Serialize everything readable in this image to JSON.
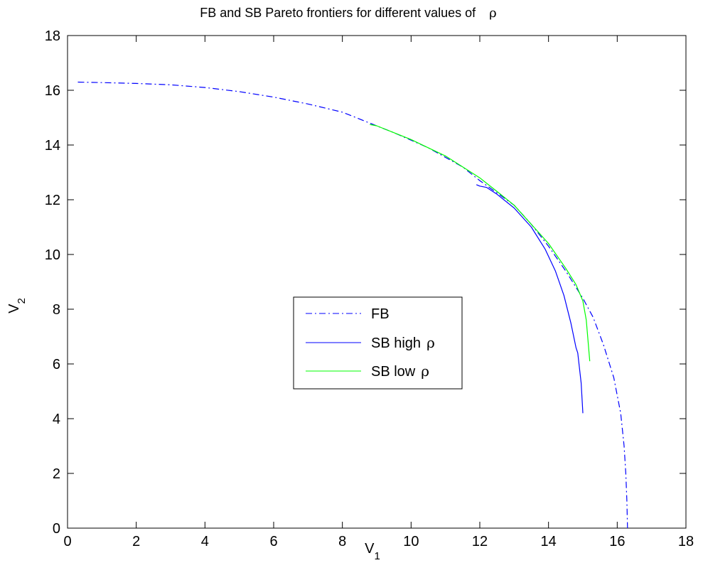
{
  "chart_data": {
    "type": "line",
    "title": "FB and SB Pareto frontiers for different values of",
    "title_symbol": "ρ",
    "xlabel": "V",
    "xlabel_sub": "1",
    "ylabel": "V",
    "ylabel_sub": "2",
    "xlim": [
      0,
      18
    ],
    "ylim": [
      0,
      18
    ],
    "xticks": [
      "0",
      "2",
      "4",
      "6",
      "8",
      "10",
      "12",
      "14",
      "16",
      "18"
    ],
    "yticks": [
      "0",
      "2",
      "4",
      "6",
      "8",
      "10",
      "12",
      "14",
      "16",
      "18"
    ],
    "grid": false,
    "legend_position": "center",
    "series": [
      {
        "name": "FB",
        "color": "#0000ff",
        "style": "dash-dot",
        "x": [
          0.3,
          1.0,
          2.0,
          3.0,
          4.0,
          5.0,
          6.0,
          7.0,
          8.0,
          8.8,
          9.5,
          10.5,
          11.5,
          12.0,
          12.5,
          13.0,
          13.5,
          14.0,
          14.5,
          15.0,
          15.3,
          15.6,
          15.9,
          16.1,
          16.2,
          16.25,
          16.28,
          16.3
        ],
        "y": [
          16.3,
          16.28,
          16.25,
          16.2,
          16.1,
          15.95,
          15.75,
          15.5,
          15.2,
          14.8,
          14.45,
          13.9,
          13.2,
          12.7,
          12.25,
          11.8,
          11.1,
          10.3,
          9.4,
          8.4,
          7.7,
          6.7,
          5.5,
          4.2,
          3.0,
          2.0,
          1.0,
          0.0
        ]
      },
      {
        "name": "SB high ρ",
        "label": "SB high",
        "color": "#0000ff",
        "style": "solid",
        "x": [
          11.9,
          12.0,
          12.2,
          12.5,
          13.0,
          13.5,
          13.9,
          14.2,
          14.45,
          14.65,
          14.8,
          14.85,
          14.95,
          15.0
        ],
        "y": [
          12.55,
          12.5,
          12.45,
          12.2,
          11.7,
          11.0,
          10.2,
          9.4,
          8.5,
          7.5,
          6.6,
          6.4,
          5.3,
          4.2
        ]
      },
      {
        "name": "SB low ρ",
        "label": "SB low",
        "color": "#00ff00",
        "style": "solid",
        "x": [
          8.8,
          9.0,
          9.5,
          10.0,
          10.5,
          11.0,
          11.5,
          12.0,
          12.5,
          13.0,
          13.5,
          14.0,
          14.5,
          14.8,
          15.0,
          15.1,
          15.2
        ],
        "y": [
          14.75,
          14.7,
          14.45,
          14.2,
          13.9,
          13.6,
          13.2,
          12.8,
          12.3,
          11.8,
          11.1,
          10.4,
          9.5,
          8.9,
          8.3,
          7.6,
          6.1
        ]
      }
    ],
    "legend": {
      "items": [
        {
          "label": "FB",
          "symbol": "",
          "color": "#0000ff",
          "style": "dash-dot"
        },
        {
          "label": "SB high",
          "symbol": "ρ",
          "color": "#0000ff",
          "style": "solid"
        },
        {
          "label": "SB low",
          "symbol": "ρ",
          "color": "#00ff00",
          "style": "solid"
        }
      ]
    }
  }
}
